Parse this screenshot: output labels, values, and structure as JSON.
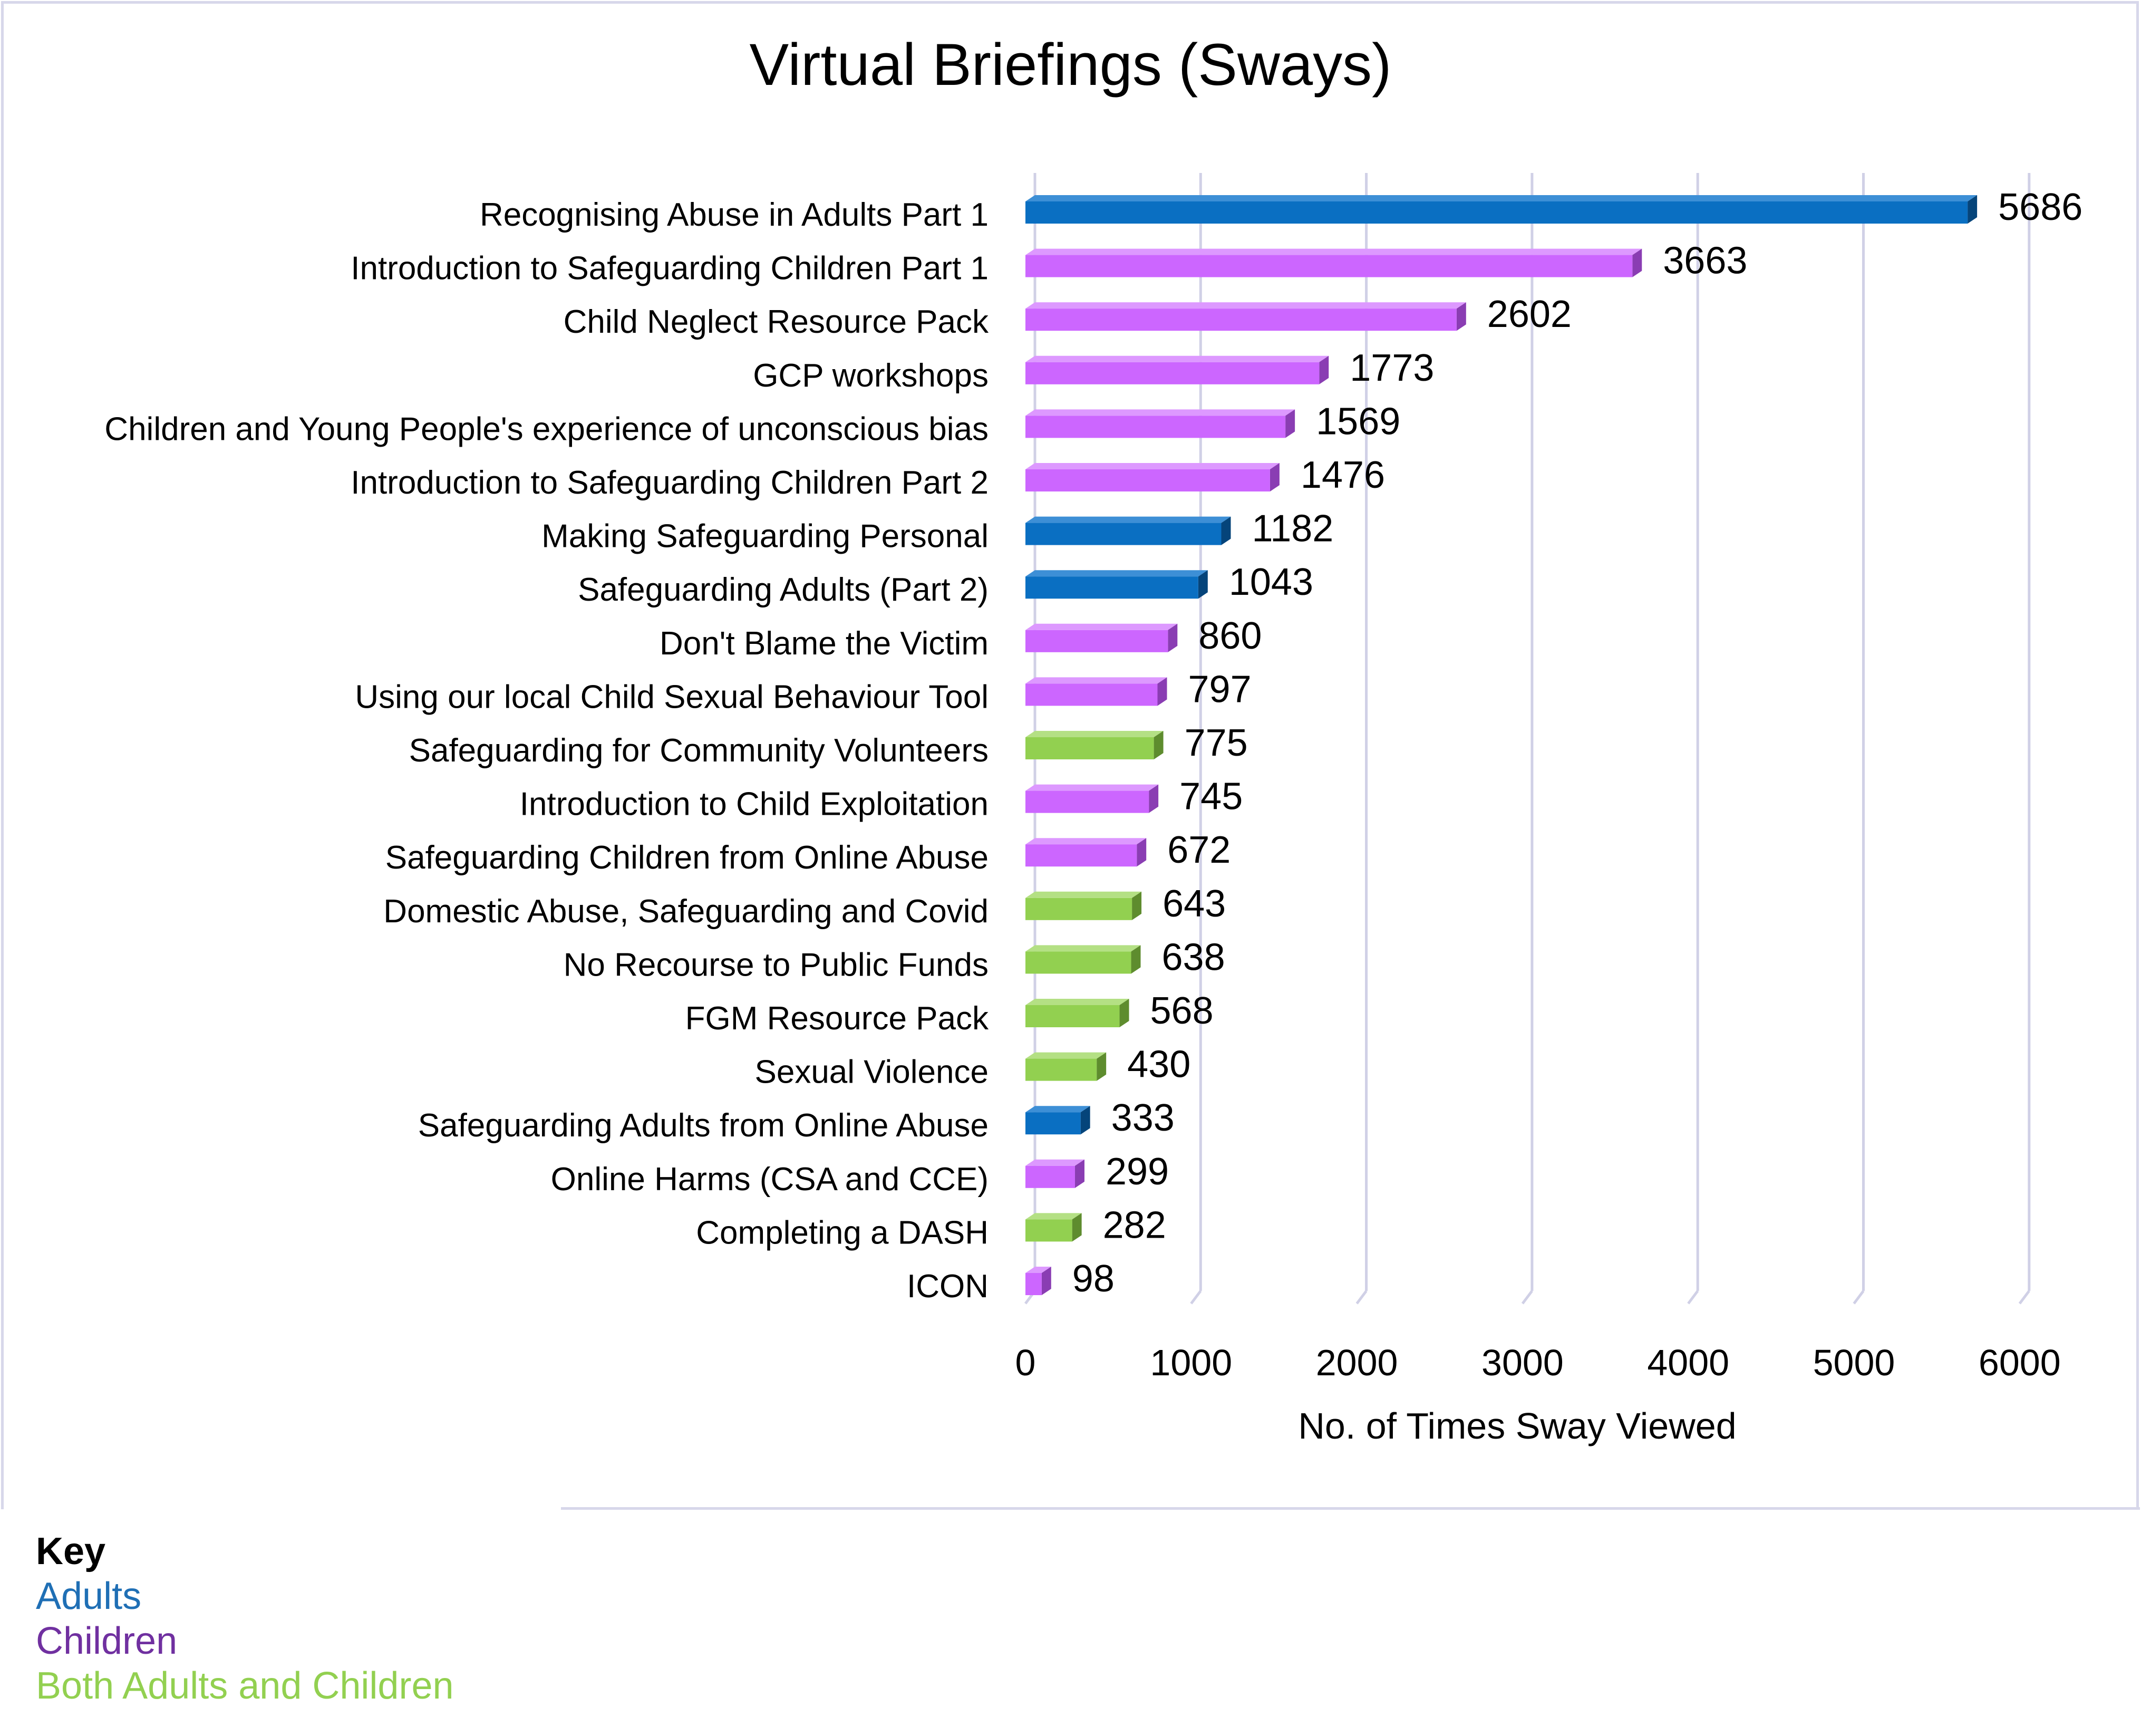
{
  "chart_data": {
    "type": "bar",
    "orientation": "horizontal",
    "title": "Virtual Briefings (Sways)",
    "xlabel": "No. of Times Sway Viewed",
    "ylabel": "",
    "xlim": [
      0,
      6000
    ],
    "x_ticks": [
      "0",
      "1000",
      "2000",
      "3000",
      "4000",
      "5000",
      "6000"
    ],
    "grid": "vertical",
    "categories": [
      "Recognising Abuse in Adults Part 1",
      "Introduction to Safeguarding Children Part 1",
      "Child Neglect Resource Pack",
      "GCP workshops",
      "Children and Young People's experience of unconscious bias",
      "Introduction to Safeguarding Children Part 2",
      "Making Safeguarding Personal",
      "Safeguarding Adults (Part 2)",
      "Don't Blame the Victim",
      "Using our local Child Sexual Behaviour Tool",
      "Safeguarding for Community Volunteers",
      "Introduction to Child Exploitation",
      "Safeguarding Children from Online Abuse",
      "Domestic Abuse, Safeguarding and Covid",
      "No Recourse to Public Funds",
      "FGM Resource Pack",
      "Sexual Violence",
      "Safeguarding Adults from Online Abuse",
      "Online Harms (CSA and CCE)",
      "Completing a DASH",
      "ICON"
    ],
    "values": [
      5686,
      3663,
      2602,
      1773,
      1569,
      1476,
      1182,
      1043,
      860,
      797,
      775,
      745,
      672,
      643,
      638,
      568,
      430,
      333,
      299,
      282,
      98
    ],
    "audience": [
      "adults",
      "children",
      "children",
      "children",
      "children",
      "children",
      "adults",
      "adults",
      "children",
      "children",
      "both",
      "children",
      "children",
      "both",
      "both",
      "both",
      "both",
      "adults",
      "children",
      "both",
      "children"
    ]
  },
  "colors": {
    "adults": {
      "face": "#0a6fc2",
      "top": "#3d8fd6",
      "side": "#05447a"
    },
    "children": {
      "face": "#cc66ff",
      "top": "#dd99ff",
      "side": "#8a3db3"
    },
    "both": {
      "face": "#92d050",
      "top": "#b4e084",
      "side": "#5e8c2e"
    },
    "grid": "#d0d0e6"
  },
  "key": {
    "title": "Key",
    "items": [
      {
        "label": "Adults",
        "color": "#1f6fb5"
      },
      {
        "label": "Children",
        "color": "#7030a0"
      },
      {
        "label": "Both Adults and Children",
        "color": "#92d050"
      }
    ]
  }
}
